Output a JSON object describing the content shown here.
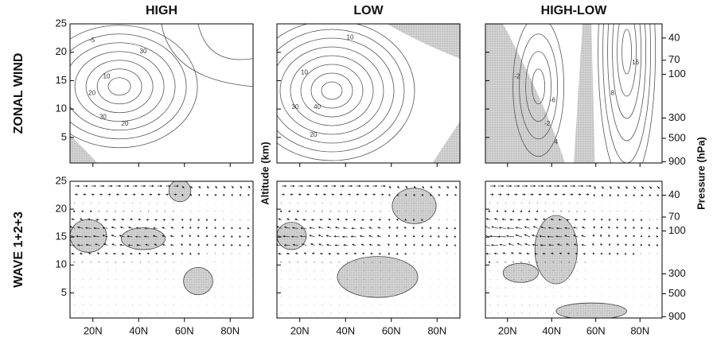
{
  "chart_data": {
    "type": "contour",
    "titles": [
      "HIGH",
      "LOW",
      "HIGH-LOW"
    ],
    "row_labels": [
      "ZONAL WIND",
      "WAVE 1+2+3"
    ],
    "ylabel": "Altitude (km)",
    "y2label": "Pressure (hPa)",
    "xlim": [
      10,
      90
    ],
    "xticks": [
      {
        "value": 20,
        "label": "20N"
      },
      {
        "value": 40,
        "label": "40N"
      },
      {
        "value": 60,
        "label": "60N"
      },
      {
        "value": 80,
        "label": "80N"
      }
    ],
    "ylim": [
      0.5,
      25
    ],
    "yticks": [
      5,
      10,
      15,
      20,
      25
    ],
    "y2lim": [
      930,
      28
    ],
    "y2log": true,
    "y2ticks": [
      40,
      70,
      100,
      300,
      500,
      900
    ],
    "contour_labels": [
      [
        10,
        20,
        30,
        30,
        20,
        -5
      ],
      [
        10,
        30,
        40,
        20,
        10
      ],
      [
        -2,
        -2,
        -6,
        16,
        8,
        4
      ]
    ]
  }
}
